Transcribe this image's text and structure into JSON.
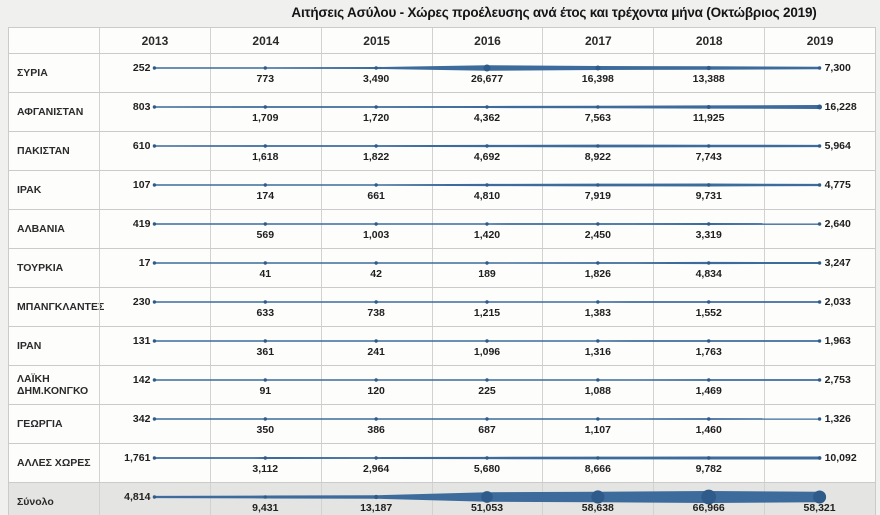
{
  "title": "Αιτήσεις Ασύλου - Χώρες προέλευσης ανά έτος και τρέχοντα μήνα (Οκτώβριος 2019)",
  "colors": {
    "line": "#3d6b9c",
    "dot": "#2e5b8a",
    "border": "#cbcbcb",
    "total_row_bg": "#e4e4e3",
    "page_bg": "#f0f0ef"
  },
  "chart_data": {
    "type": "line",
    "title": "Αιτήσεις Ασύλου - Χώρες προέλευσης ανά έτος και τρέχοντα μήνα (Οκτώβριος 2019)",
    "x": [
      "2013",
      "2014",
      "2015",
      "2016",
      "2017",
      "2018",
      "2019"
    ],
    "line_width_encodes": "value",
    "legend_position": "none",
    "grid": "table-cells",
    "value_max": 66966,
    "series": [
      {
        "name": "ΣΥΡΙΑ",
        "values": [
          252,
          773,
          3490,
          26677,
          16398,
          13388,
          7300
        ]
      },
      {
        "name": "ΑΦΓΑΝΙΣΤΑΝ",
        "values": [
          803,
          1709,
          1720,
          4362,
          7563,
          11925,
          16228
        ]
      },
      {
        "name": "ΠΑΚΙΣΤΑΝ",
        "values": [
          610,
          1618,
          1822,
          4692,
          8922,
          7743,
          5964
        ]
      },
      {
        "name": "ΙΡΑΚ",
        "values": [
          107,
          174,
          661,
          4810,
          7919,
          9731,
          4775
        ]
      },
      {
        "name": "ΑΛΒΑΝΙΑ",
        "values": [
          419,
          569,
          1003,
          1420,
          2450,
          3319,
          2640
        ]
      },
      {
        "name": "ΤΟΥΡΚΙΑ",
        "values": [
          17,
          41,
          42,
          189,
          1826,
          4834,
          3247
        ]
      },
      {
        "name": "ΜΠΑΝΓΚΛΑΝΤΕΣ",
        "values": [
          230,
          633,
          738,
          1215,
          1383,
          1552,
          2033
        ]
      },
      {
        "name": "ΙΡΑΝ",
        "values": [
          131,
          361,
          241,
          1096,
          1316,
          1763,
          1963
        ]
      },
      {
        "name": "ΛΑΪΚΗ ΔΗΜ.ΚΟΝΓΚΟ",
        "values": [
          142,
          91,
          120,
          225,
          1088,
          1469,
          2753
        ]
      },
      {
        "name": "ΓΕΩΡΓΙΑ",
        "values": [
          342,
          350,
          386,
          687,
          1107,
          1460,
          1326
        ]
      },
      {
        "name": "ΑΛΛΕΣ ΧΩΡΕΣ",
        "values": [
          1761,
          3112,
          2964,
          5680,
          8666,
          9782,
          10092
        ]
      }
    ],
    "total": {
      "name": "Σύνολο",
      "values": [
        4814,
        9431,
        13187,
        51053,
        58638,
        66966,
        58321
      ]
    }
  }
}
